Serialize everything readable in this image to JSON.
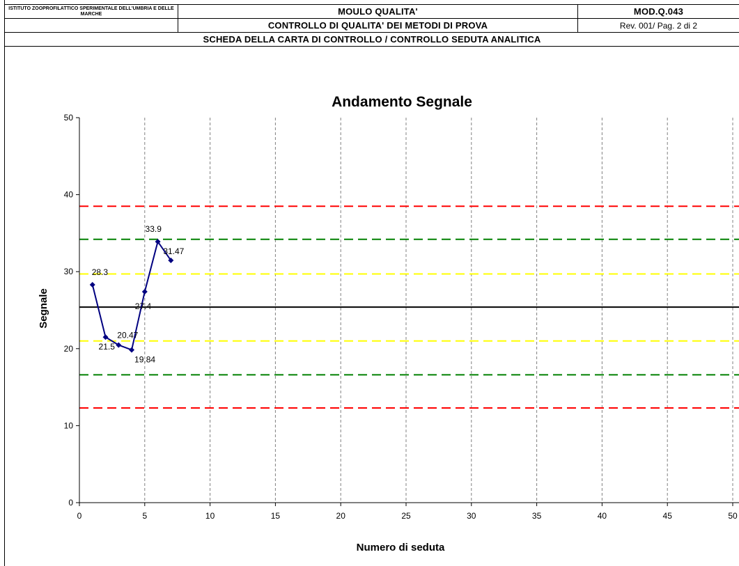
{
  "header": {
    "institute": "ISTITUTO ZOOPROFILATTICO SPERIMENTALE DELL'UMBRIA E DELLE MARCHE",
    "form_title": "MOULO QUALITA'",
    "form_code": "MOD.Q.043",
    "subtitle": "CONTROLLO DI QUALITA' DEI METODI DI PROVA",
    "revision": "Rev. 001/ Pag. 2 di 2",
    "section_title": "SCHEDA DELLA CARTA DI CONTROLLO / CONTROLLO SEDUTA ANALITICA"
  },
  "chart_data": {
    "type": "line",
    "title": "Andamento Segnale",
    "xlabel": "Numero di seduta",
    "ylabel": "Segnale",
    "xlim": [
      0,
      50
    ],
    "ylim": [
      0,
      50
    ],
    "x_ticks": [
      "0",
      "5",
      "10",
      "15",
      "20",
      "25",
      "30",
      "35",
      "40",
      "45",
      "50"
    ],
    "y_ticks": [
      "0",
      "10",
      "20",
      "30",
      "40",
      "50"
    ],
    "vertical_gridlines": "dashed at every x tick",
    "series": [
      {
        "x": [
          1,
          2,
          3,
          4,
          5,
          6,
          7
        ],
        "values": [
          28.3,
          21.5,
          20.47,
          19.84,
          27.4,
          33.9,
          31.47
        ],
        "labels": [
          "28.3",
          "21.5",
          "20.47",
          "19.84",
          "27.4",
          "33.9",
          "31.47"
        ],
        "color": "#000080",
        "marker": "diamond"
      }
    ],
    "reference_lines": [
      {
        "y": 38.5,
        "color": "#ff0000",
        "style": "dashed"
      },
      {
        "y": 34.2,
        "color": "#008000",
        "style": "dashed"
      },
      {
        "y": 29.7,
        "color": "#ffff00",
        "style": "dashed"
      },
      {
        "y": 25.4,
        "color": "#000000",
        "style": "solid"
      },
      {
        "y": 21.0,
        "color": "#ffff00",
        "style": "dashed"
      },
      {
        "y": 16.6,
        "color": "#008000",
        "style": "dashed"
      },
      {
        "y": 12.3,
        "color": "#ff0000",
        "style": "dashed"
      }
    ],
    "legend": "none"
  }
}
